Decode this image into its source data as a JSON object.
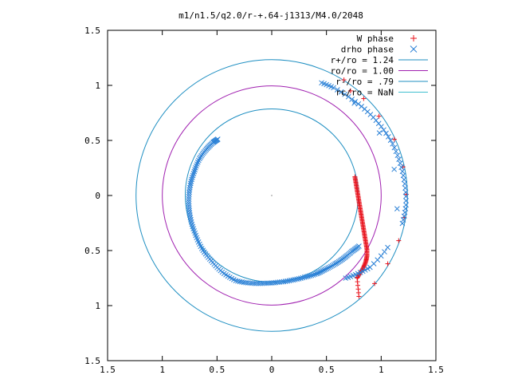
{
  "chart_data": {
    "type": "scatter",
    "title": "m1/n1.5/q2.0/r-+.64-j1313/M4.0/2048",
    "xlabel": "",
    "ylabel": "",
    "xlim": [
      -1.5,
      1.5
    ],
    "ylim": [
      -1.5,
      1.5
    ],
    "x_tick_labels": [
      "1.5",
      "1",
      "0.5",
      "0",
      "0.5",
      "1",
      "1.5"
    ],
    "y_tick_labels": [
      "1.5",
      "1",
      "0.5",
      "0",
      "0.5",
      "1",
      "1.5"
    ],
    "grid": false,
    "legend_position": "top-right",
    "circles": [
      {
        "name": "r+/ro = 1.24",
        "radius": 1.24,
        "color": "#1f8fc2"
      },
      {
        "name": "ro/ro = 1.00",
        "radius": 1.0,
        "color": "#a020b0"
      },
      {
        "name": "r-/ro = .79",
        "radius": 0.79,
        "color": "#1f8fc2"
      },
      {
        "name": "rc/ro = NaN",
        "radius": null,
        "color": "#40c0d0"
      }
    ],
    "series": [
      {
        "name": "W phase",
        "marker": "+",
        "color": "#e8141e",
        "points": [
          [
            0.76,
            0.17
          ],
          [
            0.77,
            0.11
          ],
          [
            0.78,
            0.05
          ],
          [
            0.79,
            -0.01
          ],
          [
            0.8,
            -0.07
          ],
          [
            0.81,
            -0.13
          ],
          [
            0.82,
            -0.19
          ],
          [
            0.83,
            -0.25
          ],
          [
            0.84,
            -0.31
          ],
          [
            0.85,
            -0.37
          ],
          [
            0.86,
            -0.43
          ],
          [
            0.87,
            -0.49
          ],
          [
            0.87,
            -0.55
          ],
          [
            0.86,
            -0.6
          ],
          [
            0.84,
            -0.65
          ],
          [
            0.81,
            -0.7
          ],
          [
            0.78,
            -0.75
          ],
          [
            0.8,
            -0.95
          ],
          [
            0.94,
            -0.8
          ],
          [
            1.06,
            -0.62
          ],
          [
            1.16,
            -0.41
          ],
          [
            1.21,
            -0.2
          ],
          [
            1.23,
            0.01
          ],
          [
            1.2,
            0.26
          ],
          [
            1.12,
            0.51
          ],
          [
            0.98,
            0.72
          ],
          [
            0.84,
            0.88
          ],
          [
            0.72,
            0.95
          ],
          [
            0.66,
            1.05
          ]
        ]
      },
      {
        "name": "drho phase",
        "marker": "x",
        "color": "#2a80d6",
        "arc_polar": [
          [
            330,
            0.92
          ],
          [
            325,
            0.89
          ],
          [
            319,
            0.87
          ],
          [
            313,
            0.85
          ],
          [
            306,
            0.83
          ],
          [
            300,
            0.82
          ],
          [
            292,
            0.8
          ],
          [
            283,
            0.79
          ],
          [
            274,
            0.79
          ],
          [
            265,
            0.8
          ],
          [
            256,
            0.82
          ],
          [
            247,
            0.84
          ],
          [
            237,
            0.83
          ],
          [
            227,
            0.81
          ],
          [
            217,
            0.8
          ],
          [
            206,
            0.78
          ],
          [
            195,
            0.77
          ],
          [
            184,
            0.76
          ],
          [
            173,
            0.75
          ],
          [
            163,
            0.74
          ],
          [
            153,
            0.74
          ],
          [
            145,
            0.73
          ],
          [
            138,
            0.72
          ],
          [
            134,
            0.71
          ]
        ],
        "outer_polar": [
          [
            348,
            1.22
          ],
          [
            356,
            1.23
          ],
          [
            5,
            1.22
          ],
          [
            14,
            1.21
          ],
          [
            23,
            1.2
          ],
          [
            32,
            1.18
          ],
          [
            41,
            1.16
          ],
          [
            50,
            1.14
          ],
          [
            60,
            1.13
          ],
          [
            66,
            1.12
          ],
          [
            336,
            1.16
          ],
          [
            324,
            1.11
          ],
          [
            318,
            1.06
          ],
          [
            312,
            1.01
          ]
        ]
      }
    ]
  }
}
